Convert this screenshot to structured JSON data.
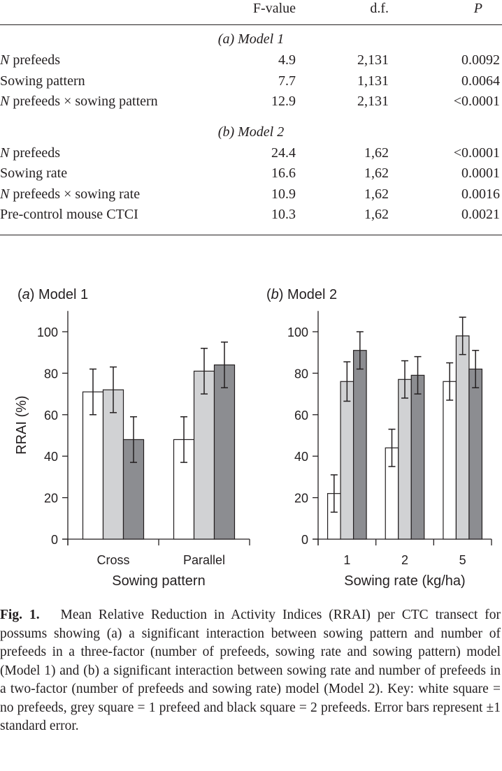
{
  "table": {
    "headers": [
      "",
      "F-value",
      "d.f.",
      "P"
    ],
    "sections": [
      {
        "title": "(a) Model 1",
        "rows": [
          [
            "N prefeeds",
            "4.9",
            "2,131",
            "0.0092"
          ],
          [
            "Sowing pattern",
            "7.7",
            "1,131",
            "0.0064"
          ],
          [
            "N prefeeds × sowing pattern",
            "12.9",
            "2,131",
            "<0.0001"
          ]
        ]
      },
      {
        "title": "(b) Model 2",
        "rows": [
          [
            "N prefeeds",
            "24.4",
            "1,62",
            "<0.0001"
          ],
          [
            "Sowing rate",
            "16.6",
            "1,62",
            "0.0001"
          ],
          [
            "N prefeeds × sowing rate",
            "10.9",
            "1,62",
            "0.0016"
          ],
          [
            "Pre-control mouse CTCI",
            "10.3",
            "1,62",
            "0.0021"
          ]
        ]
      }
    ]
  },
  "chart_data": [
    {
      "type": "bar",
      "title": "(a) Model 1",
      "xlabel": "Sowing pattern",
      "ylabel": "RRAI (%)",
      "ylim": [
        0,
        110
      ],
      "yticks": [
        0,
        20,
        40,
        60,
        80,
        100
      ],
      "categories": [
        "Cross",
        "Parallel"
      ],
      "series": [
        {
          "values": [
            71,
            48
          ],
          "errors": [
            11,
            11
          ],
          "color": "#ffffff"
        },
        {
          "values": [
            72,
            81
          ],
          "errors": [
            11,
            11
          ],
          "color": "#d1d2d4"
        },
        {
          "values": [
            48,
            84
          ],
          "errors": [
            11,
            11
          ],
          "color": "#8c8d91"
        }
      ],
      "grid": false
    },
    {
      "type": "bar",
      "title": "(b) Model 2",
      "xlabel": "Sowing rate (kg/ha)",
      "ylabel": "",
      "ylim": [
        0,
        110
      ],
      "yticks": [
        0,
        20,
        40,
        60,
        80,
        100
      ],
      "categories": [
        "1",
        "2",
        "5"
      ],
      "series": [
        {
          "values": [
            22,
            44,
            76
          ],
          "errors": [
            9,
            9,
            9
          ],
          "color": "#ffffff"
        },
        {
          "values": [
            76,
            77,
            98
          ],
          "errors": [
            9.5,
            9,
            9
          ],
          "color": "#d1d2d4"
        },
        {
          "values": [
            91,
            79,
            82
          ],
          "errors": [
            9,
            9,
            9
          ],
          "color": "#8c8d91"
        }
      ],
      "grid": false
    }
  ],
  "caption": {
    "label": "Fig. 1.",
    "text": "Mean Relative Reduction in Activity Indices (RRAI) per CTC transect for possums showing (a) a significant interaction between sowing pattern and number of prefeeds in a three-factor (number of prefeeds, sowing rate and sowing pattern) model (Model 1) and (b) a significant interaction between sowing rate and number of prefeeds in a two-factor (number of prefeeds and sowing rate) model (Model 2). Key: white square = no prefeeds, grey square = 1 prefeed and black square = 2 prefeeds. Error bars represent ±1 standard error."
  }
}
